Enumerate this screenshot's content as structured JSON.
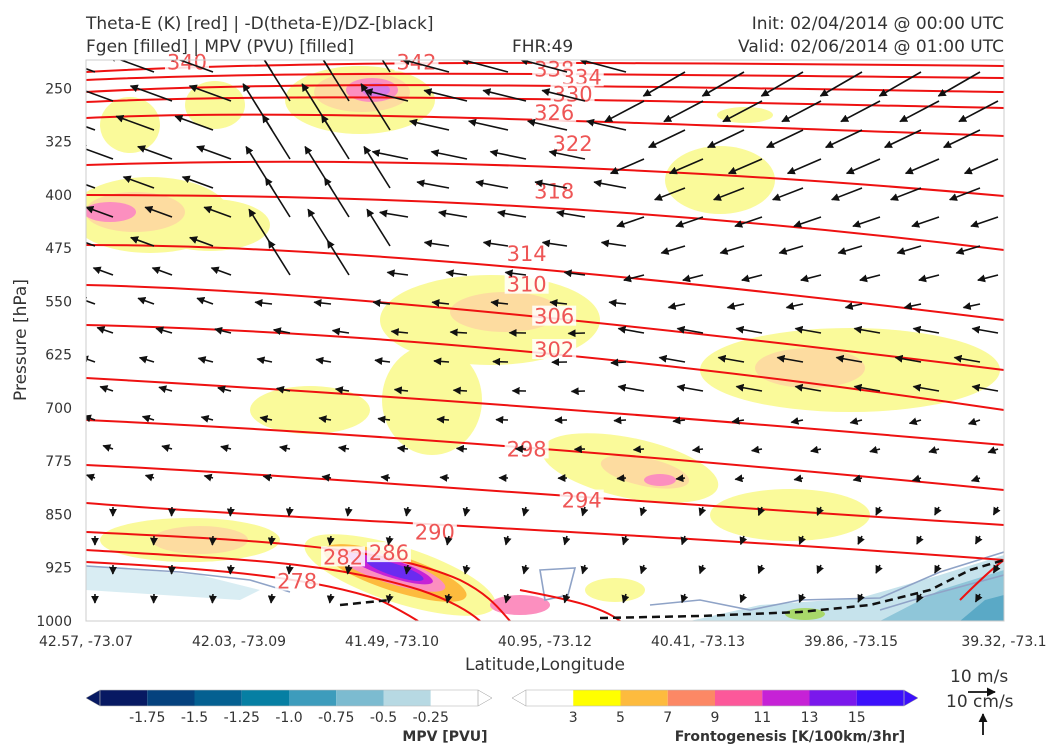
{
  "header": {
    "left_line1": "Theta-E (K) [red] | -D(theta-E)/DZ-[black]",
    "left_line2": "Fgen [filled] | MPV (PVU) [filled]",
    "fhr": "FHR:49",
    "init": "Init: 02/04/2014 @ 00:00 UTC",
    "valid": "Valid: 02/06/2014 @ 01:00 UTC"
  },
  "wind_key": {
    "label1": "10 m/s",
    "label2": "10 cm/s"
  },
  "chart_data": {
    "type": "cross-section",
    "xlabel": "Latitude,Longitude",
    "ylabel": "Pressure [hPa]",
    "x_ticks": [
      "42.57, -73.07",
      "42.03, -73.09",
      "41.49, -73.10",
      "40.95, -73.12",
      "40.41, -73.13",
      "39.86, -73.15",
      "39.32, -73.1"
    ],
    "y_ticks": [
      250,
      325,
      400,
      475,
      550,
      625,
      700,
      775,
      850,
      925,
      1000
    ],
    "ylim": [
      1000,
      210
    ],
    "y_reversed": true,
    "theta_e_labels": [
      {
        "value": 340,
        "x": 0.11,
        "p": 212
      },
      {
        "value": 342,
        "x": 0.36,
        "p": 212
      },
      {
        "value": 338,
        "x": 0.51,
        "p": 222
      },
      {
        "value": 334,
        "x": 0.54,
        "p": 233
      },
      {
        "value": 330,
        "x": 0.53,
        "p": 257
      },
      {
        "value": 326,
        "x": 0.51,
        "p": 283
      },
      {
        "value": 322,
        "x": 0.53,
        "p": 327
      },
      {
        "value": 318,
        "x": 0.51,
        "p": 394
      },
      {
        "value": 314,
        "x": 0.48,
        "p": 482
      },
      {
        "value": 310,
        "x": 0.48,
        "p": 525
      },
      {
        "value": 306,
        "x": 0.51,
        "p": 570
      },
      {
        "value": 302,
        "x": 0.51,
        "p": 617
      },
      {
        "value": 298,
        "x": 0.48,
        "p": 757
      },
      {
        "value": 294,
        "x": 0.54,
        "p": 829
      },
      {
        "value": 290,
        "x": 0.38,
        "p": 874
      },
      {
        "value": 286,
        "x": 0.33,
        "p": 903
      },
      {
        "value": 282,
        "x": 0.28,
        "p": 909
      },
      {
        "value": 278,
        "x": 0.23,
        "p": 943
      }
    ],
    "fgen_colorbar": {
      "label": "Frontogenesis [K/100km/3hr]",
      "ticks": [
        "3",
        "5",
        "7",
        "9",
        "11",
        "13",
        "15"
      ],
      "colors": [
        "#ffffff",
        "#ffff00",
        "#fdbb3e",
        "#fc8865",
        "#fc589a",
        "#c622d6",
        "#7a18ec",
        "#3c10fb"
      ]
    },
    "mpv_colorbar": {
      "label": "MPV [PVU]",
      "ticks": [
        "-1.75",
        "-1.5",
        "-1.25",
        "-1.0",
        "-0.75",
        "-0.5",
        "-0.25"
      ],
      "colors": [
        "#071962",
        "#05427e",
        "#046091",
        "#067fa3",
        "#3d9cbc",
        "#7cbbd0",
        "#b7d9e3",
        "#ffffff"
      ]
    }
  }
}
